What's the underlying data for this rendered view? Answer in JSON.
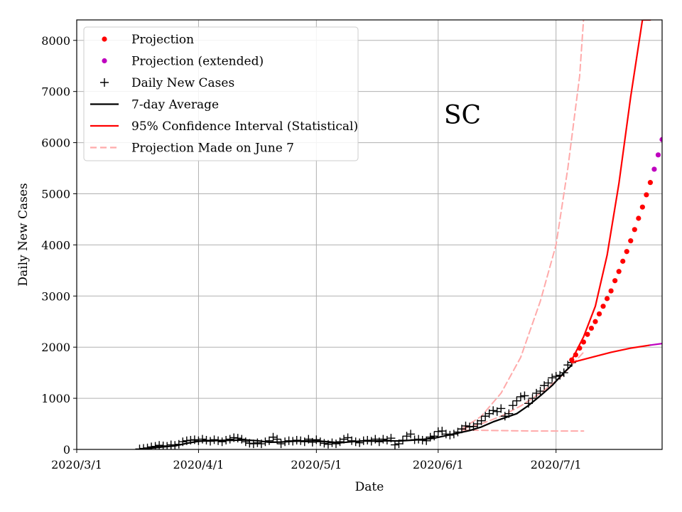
{
  "chart_data": {
    "type": "line",
    "title": "",
    "annotation": "SC",
    "xlabel": "Date",
    "ylabel": "Daily New Cases",
    "xlim": [
      "2020-03-01",
      "2020-07-28"
    ],
    "ylim": [
      0,
      8400
    ],
    "x_ticks": [
      "2020-03-01",
      "2020-04-01",
      "2020-05-01",
      "2020-06-01",
      "2020-07-01"
    ],
    "x_tick_labels": [
      "2020/3/1",
      "2020/4/1",
      "2020/5/1",
      "2020/6/1",
      "2020/7/1"
    ],
    "y_ticks": [
      0,
      1000,
      2000,
      3000,
      4000,
      5000,
      6000,
      7000,
      8000
    ],
    "y_tick_labels": [
      "0",
      "1000",
      "2000",
      "3000",
      "4000",
      "5000",
      "6000",
      "7000",
      "8000"
    ],
    "grid": true,
    "legend_position": "top-left",
    "legend": [
      {
        "label": "Projection",
        "marker": "dot",
        "color": "#ff0000"
      },
      {
        "label": "Projection (extended)",
        "marker": "dot",
        "color": "#bf00bf"
      },
      {
        "label": "Daily New Cases",
        "marker": "plus",
        "color": "#000000"
      },
      {
        "label": "7-day Average",
        "marker": "line",
        "color": "#000000"
      },
      {
        "label": "95% Confidence Interval (Statistical)",
        "marker": "line",
        "color": "#ff0000"
      },
      {
        "label": "Projection Made on June 7",
        "marker": "dashed",
        "color": "#ffaaaa"
      }
    ],
    "series": [
      {
        "name": "Daily New Cases",
        "style": "plus",
        "color": "#000000",
        "x": [
          "2020-03-17",
          "2020-03-18",
          "2020-03-19",
          "2020-03-20",
          "2020-03-21",
          "2020-03-22",
          "2020-03-23",
          "2020-03-24",
          "2020-03-25",
          "2020-03-26",
          "2020-03-27",
          "2020-03-28",
          "2020-03-29",
          "2020-03-30",
          "2020-03-31",
          "2020-04-01",
          "2020-04-02",
          "2020-04-03",
          "2020-04-04",
          "2020-04-05",
          "2020-04-06",
          "2020-04-07",
          "2020-04-08",
          "2020-04-09",
          "2020-04-10",
          "2020-04-11",
          "2020-04-12",
          "2020-04-13",
          "2020-04-14",
          "2020-04-15",
          "2020-04-16",
          "2020-04-17",
          "2020-04-18",
          "2020-04-19",
          "2020-04-20",
          "2020-04-21",
          "2020-04-22",
          "2020-04-23",
          "2020-04-24",
          "2020-04-25",
          "2020-04-26",
          "2020-04-27",
          "2020-04-28",
          "2020-04-29",
          "2020-04-30",
          "2020-05-01",
          "2020-05-02",
          "2020-05-03",
          "2020-05-04",
          "2020-05-05",
          "2020-05-06",
          "2020-05-07",
          "2020-05-08",
          "2020-05-09",
          "2020-05-10",
          "2020-05-11",
          "2020-05-12",
          "2020-05-13",
          "2020-05-14",
          "2020-05-15",
          "2020-05-16",
          "2020-05-17",
          "2020-05-18",
          "2020-05-19",
          "2020-05-20",
          "2020-05-21",
          "2020-05-22",
          "2020-05-23",
          "2020-05-24",
          "2020-05-25",
          "2020-05-26",
          "2020-05-27",
          "2020-05-28",
          "2020-05-29",
          "2020-05-30",
          "2020-05-31",
          "2020-06-01",
          "2020-06-02",
          "2020-06-03",
          "2020-06-04",
          "2020-06-05",
          "2020-06-06",
          "2020-06-07",
          "2020-06-08",
          "2020-06-09",
          "2020-06-10",
          "2020-06-11",
          "2020-06-12",
          "2020-06-13",
          "2020-06-14",
          "2020-06-15",
          "2020-06-16",
          "2020-06-17",
          "2020-06-18",
          "2020-06-19",
          "2020-06-20",
          "2020-06-21",
          "2020-06-22",
          "2020-06-23",
          "2020-06-24",
          "2020-06-25",
          "2020-06-26",
          "2020-06-27",
          "2020-06-28",
          "2020-06-29",
          "2020-06-30",
          "2020-07-01",
          "2020-07-02",
          "2020-07-03",
          "2020-07-04",
          "2020-07-05"
        ],
        "values": [
          10,
          20,
          30,
          50,
          60,
          80,
          70,
          60,
          90,
          80,
          100,
          150,
          170,
          180,
          190,
          170,
          200,
          180,
          160,
          190,
          170,
          150,
          180,
          200,
          230,
          220,
          200,
          150,
          120,
          110,
          130,
          110,
          150,
          170,
          240,
          200,
          110,
          150,
          170,
          160,
          180,
          170,
          150,
          200,
          140,
          190,
          150,
          120,
          100,
          130,
          110,
          150,
          200,
          230,
          170,
          150,
          130,
          170,
          180,
          160,
          200,
          150,
          200,
          180,
          220,
          90,
          110,
          180,
          260,
          300,
          190,
          200,
          180,
          170,
          240,
          260,
          350,
          360,
          300,
          280,
          300,
          340,
          400,
          460,
          440,
          450,
          500,
          560,
          650,
          700,
          760,
          740,
          800,
          650,
          700,
          860,
          950,
          1030,
          1050,
          900,
          1000,
          1100,
          1140,
          1250,
          1300,
          1400,
          1430,
          1450,
          1500,
          1650,
          1700
        ]
      },
      {
        "name": "7-day Average",
        "style": "solid",
        "color": "#000000",
        "x": [
          "2020-03-17",
          "2020-03-20",
          "2020-03-23",
          "2020-03-26",
          "2020-03-29",
          "2020-04-01",
          "2020-04-04",
          "2020-04-07",
          "2020-04-10",
          "2020-04-13",
          "2020-04-16",
          "2020-04-19",
          "2020-04-22",
          "2020-04-25",
          "2020-04-28",
          "2020-05-01",
          "2020-05-04",
          "2020-05-07",
          "2020-05-10",
          "2020-05-13",
          "2020-05-16",
          "2020-05-19",
          "2020-05-22",
          "2020-05-25",
          "2020-05-28",
          "2020-05-31",
          "2020-06-03",
          "2020-06-06",
          "2020-06-09",
          "2020-06-12",
          "2020-06-15",
          "2020-06-18",
          "2020-06-21",
          "2020-06-24",
          "2020-06-27",
          "2020-06-30",
          "2020-07-03",
          "2020-07-05"
        ],
        "values": [
          5,
          25,
          50,
          70,
          120,
          160,
          170,
          175,
          180,
          185,
          170,
          140,
          145,
          160,
          165,
          170,
          150,
          130,
          150,
          165,
          165,
          170,
          165,
          180,
          195,
          220,
          270,
          320,
          370,
          440,
          540,
          620,
          700,
          860,
          1050,
          1250,
          1500,
          1650
        ]
      },
      {
        "name": "Projection",
        "style": "dot",
        "color": "#ff0000",
        "x": [
          "2020-07-05",
          "2020-07-06",
          "2020-07-07",
          "2020-07-08",
          "2020-07-09",
          "2020-07-10",
          "2020-07-11",
          "2020-07-12",
          "2020-07-13",
          "2020-07-14",
          "2020-07-15",
          "2020-07-16",
          "2020-07-17",
          "2020-07-18",
          "2020-07-19",
          "2020-07-20",
          "2020-07-21",
          "2020-07-22",
          "2020-07-23",
          "2020-07-24",
          "2020-07-25"
        ],
        "values": [
          1750,
          1850,
          1980,
          2100,
          2250,
          2370,
          2500,
          2650,
          2800,
          2950,
          3100,
          3300,
          3480,
          3680,
          3870,
          4080,
          4300,
          4520,
          4740,
          4980,
          5220
        ]
      },
      {
        "name": "Projection (extended)",
        "style": "dot",
        "color": "#bf00bf",
        "x": [
          "2020-07-26",
          "2020-07-27",
          "2020-07-28",
          "2020-07-29",
          "2020-07-30",
          "2020-07-31",
          "2020-08-01"
        ],
        "values": [
          5480,
          5760,
          6060,
          6360,
          6680,
          7020,
          7020
        ]
      },
      {
        "name": "95% Confidence Interval upper",
        "style": "solid",
        "color": "#ff0000",
        "x": [
          "2020-07-05",
          "2020-07-08",
          "2020-07-11",
          "2020-07-14",
          "2020-07-17",
          "2020-07-20",
          "2020-07-23",
          "2020-07-25"
        ],
        "values": [
          1750,
          2200,
          2800,
          3800,
          5200,
          6900,
          8400,
          8400
        ]
      },
      {
        "name": "95% Confidence Interval lower",
        "style": "solid",
        "color": "#ff0000",
        "x": [
          "2020-07-05",
          "2020-07-10",
          "2020-07-15",
          "2020-07-20",
          "2020-07-25"
        ],
        "values": [
          1700,
          1800,
          1900,
          1980,
          2040
        ]
      },
      {
        "name": "95% Confidence Interval lower (extended)",
        "style": "solid",
        "color": "#bf00bf",
        "x": [
          "2020-07-25",
          "2020-07-30"
        ],
        "values": [
          2040,
          2090
        ]
      },
      {
        "name": "Projection Made on June 7 upper",
        "style": "dashed",
        "color": "#ffaaaa",
        "x": [
          "2020-06-07",
          "2020-06-12",
          "2020-06-17",
          "2020-06-22",
          "2020-06-27",
          "2020-07-01",
          "2020-07-04",
          "2020-07-07",
          "2020-07-08"
        ],
        "values": [
          400,
          650,
          1100,
          1800,
          2900,
          4000,
          5500,
          7300,
          8400
        ]
      },
      {
        "name": "Projection Made on June 7 mid",
        "style": "dashed",
        "color": "#ffaaaa",
        "x": [
          "2020-06-07",
          "2020-06-12",
          "2020-06-17",
          "2020-06-22",
          "2020-06-27",
          "2020-07-02",
          "2020-07-08"
        ],
        "values": [
          400,
          500,
          650,
          850,
          1100,
          1400,
          1900
        ]
      },
      {
        "name": "Projection Made on June 7 low",
        "style": "dashed",
        "color": "#ffaaaa",
        "x": [
          "2020-06-07",
          "2020-06-15",
          "2020-06-25",
          "2020-07-08"
        ],
        "values": [
          380,
          370,
          360,
          360
        ]
      }
    ]
  }
}
